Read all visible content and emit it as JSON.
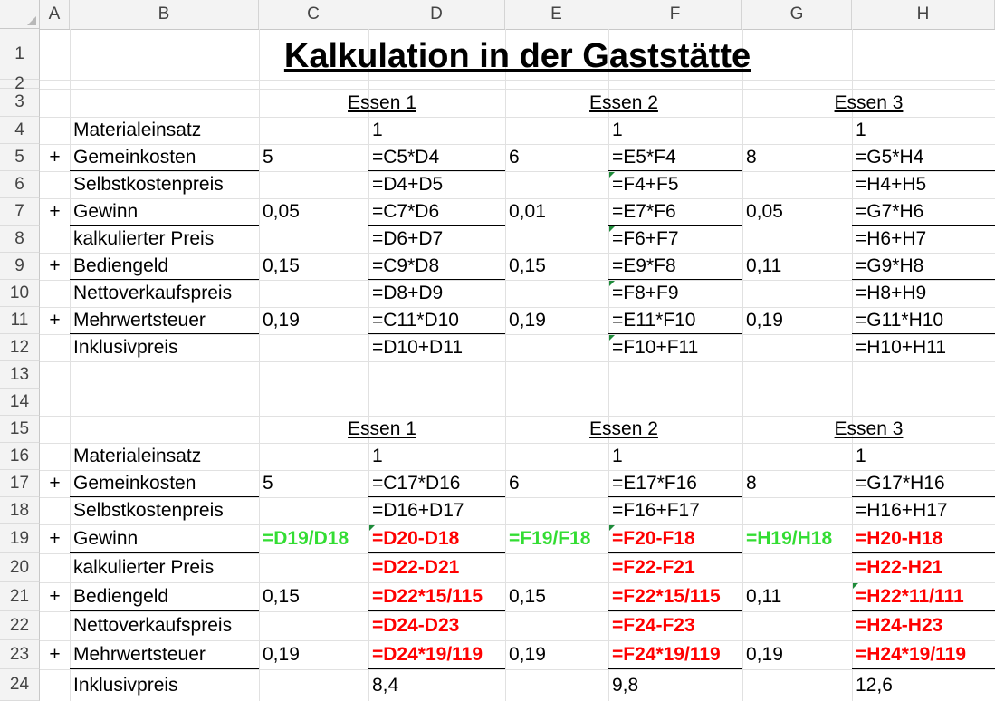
{
  "columns": [
    "A",
    "B",
    "C",
    "D",
    "E",
    "F",
    "G",
    "H"
  ],
  "title": "Kalkulation in der Gaststätte",
  "headers": {
    "e1": "Essen 1",
    "e2": "Essen 2",
    "e3": "Essen 3"
  },
  "labels": {
    "material": "Materialeinsatz",
    "gemein": "Gemeinkosten",
    "selbst": "Selbstkostenpreis",
    "gewinn": "Gewinn",
    "kalk": "kalkulierter Preis",
    "bedien": "Bediengeld",
    "netto": "Nettoverkaufspreis",
    "mwst": "Mehrwertsteuer",
    "inkl": "Inklusivpreis",
    "plus": "+"
  },
  "top": {
    "c5": "5",
    "e5": "6",
    "g5": "8",
    "c7": "0,05",
    "e7": "0,01",
    "g7": "0,05",
    "c9": "0,15",
    "e9": "0,15",
    "g9": "0,11",
    "c11": "0,19",
    "e11": "0,19",
    "g11": "0,19",
    "d4": "1",
    "f4": "1",
    "h4": "1",
    "d5": "=C5*D4",
    "f5": "=E5*F4",
    "h5": "=G5*H4",
    "d6": "=D4+D5",
    "f6": "=F4+F5",
    "h6": "=H4+H5",
    "d7": "=C7*D6",
    "f7": "=E7*F6",
    "h7": "=G7*H6",
    "d8": "=D6+D7",
    "f8": "=F6+F7",
    "h8": "=H6+H7",
    "d9": "=C9*D8",
    "f9": "=E9*F8",
    "h9": "=G9*H8",
    "d10": "=D8+D9",
    "f10": "=F8+F9",
    "h10": "=H8+H9",
    "d11": "=C11*D10",
    "f11": "=E11*F10",
    "h11": "=G11*H10",
    "d12": "=D10+D11",
    "f12": "=F10+F11",
    "h12": "=H10+H11"
  },
  "bottom": {
    "c17": "5",
    "e17": "6",
    "g17": "8",
    "c19": "=D19/D18",
    "e19": "=F19/F18",
    "g19": "=H19/H18",
    "c21": "0,15",
    "e21": "0,15",
    "g21": "0,11",
    "c23": "0,19",
    "e23": "0,19",
    "g23": "0,19",
    "d16": "1",
    "f16": "1",
    "h16": "1",
    "d17": "=C17*D16",
    "f17": "=E17*F16",
    "h17": "=G17*H16",
    "d18": "=D16+D17",
    "f18": "=F16+F17",
    "h18": "=H16+H17",
    "d19": "=D20-D18",
    "f19": "=F20-F18",
    "h19": "=H20-H18",
    "d20": "=D22-D21",
    "f20": "=F22-F21",
    "h20": "=H22-H21",
    "d21": "=D22*15/115",
    "f21": "=F22*15/115",
    "h21": "=H22*11/111",
    "d22": "=D24-D23",
    "f22": "=F24-F23",
    "h22": "=H24-H23",
    "d23": "=D24*19/119",
    "f23": "=F24*19/119",
    "h23": "=H24*19/119",
    "d24": "8,4",
    "f24": "9,8",
    "h24": "12,6"
  },
  "colors": {
    "red": "#ff0000",
    "green": "#33dd33",
    "marker": "#1e8b3a"
  }
}
